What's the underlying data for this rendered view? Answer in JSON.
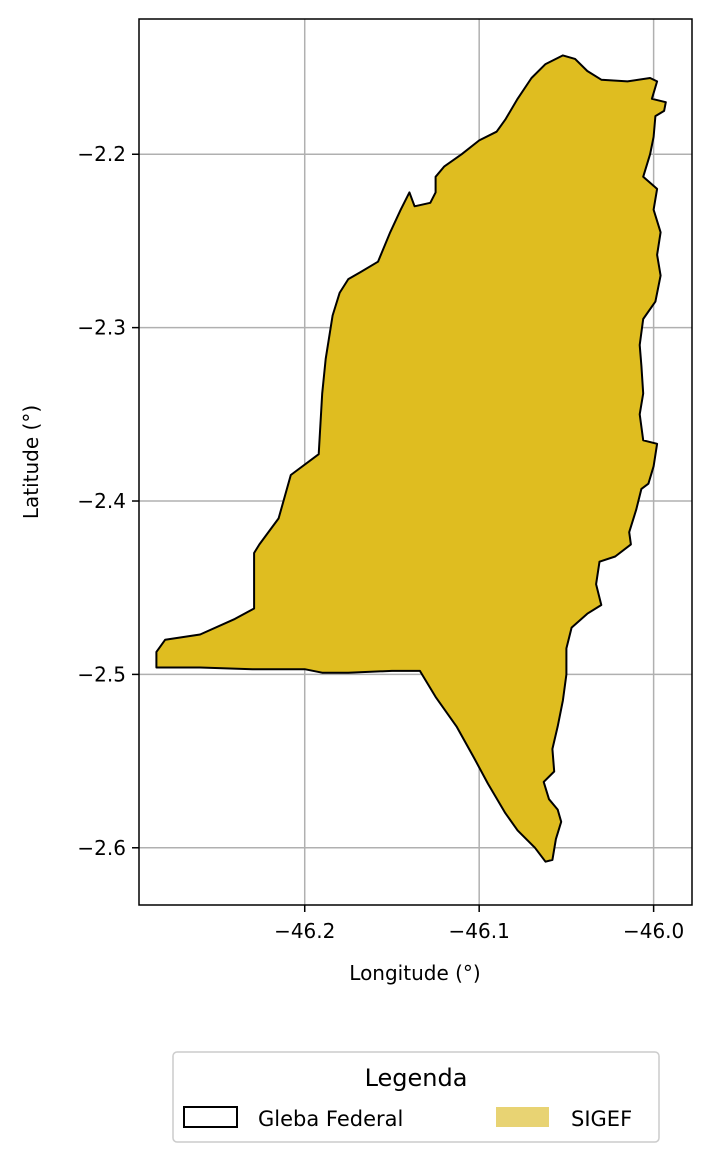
{
  "chart_data": {
    "type": "map",
    "xlabel": "Longitude (°)",
    "ylabel": "Latitude (°)",
    "xlim": [
      -46.295,
      -45.978
    ],
    "ylim": [
      -2.633,
      -2.122
    ],
    "x_ticks": [
      {
        "value": -46.2,
        "label": "−46.2"
      },
      {
        "value": -46.1,
        "label": "−46.1"
      },
      {
        "value": -46.0,
        "label": "−46.0"
      }
    ],
    "y_ticks": [
      {
        "value": -2.2,
        "label": "−2.2"
      },
      {
        "value": -2.3,
        "label": "−2.3"
      },
      {
        "value": -2.4,
        "label": "−2.4"
      },
      {
        "value": -2.5,
        "label": "−2.5"
      },
      {
        "value": -2.6,
        "label": "−2.6"
      }
    ],
    "grid": true,
    "legend": {
      "title": "Legenda",
      "placement": "bottom-center",
      "entries": [
        {
          "name": "Gleba Federal",
          "style": "outline",
          "edge_color": "#000000"
        },
        {
          "name": "SIGEF",
          "style": "fill",
          "fill_color": "#e8d373"
        }
      ]
    },
    "layers": [
      {
        "name": "SIGEF",
        "fill_color": "#dfbd20",
        "edge_color": "#000000",
        "polygon": [
          [
            -46.052,
            -2.143
          ],
          [
            -46.045,
            -2.145
          ],
          [
            -46.038,
            -2.152
          ],
          [
            -46.03,
            -2.157
          ],
          [
            -46.015,
            -2.158
          ],
          [
            -46.002,
            -2.156
          ],
          [
            -45.998,
            -2.158
          ],
          [
            -46.001,
            -2.168
          ],
          [
            -45.993,
            -2.17
          ],
          [
            -45.994,
            -2.175
          ],
          [
            -45.999,
            -2.178
          ],
          [
            -46.0,
            -2.19
          ],
          [
            -46.002,
            -2.2
          ],
          [
            -46.006,
            -2.213
          ],
          [
            -45.998,
            -2.22
          ],
          [
            -46.0,
            -2.232
          ],
          [
            -45.996,
            -2.245
          ],
          [
            -45.998,
            -2.258
          ],
          [
            -45.996,
            -2.27
          ],
          [
            -45.999,
            -2.285
          ],
          [
            -46.006,
            -2.295
          ],
          [
            -46.008,
            -2.31
          ],
          [
            -46.007,
            -2.322
          ],
          [
            -46.006,
            -2.338
          ],
          [
            -46.008,
            -2.35
          ],
          [
            -46.006,
            -2.365
          ],
          [
            -45.998,
            -2.367
          ],
          [
            -46.0,
            -2.38
          ],
          [
            -46.003,
            -2.39
          ],
          [
            -46.007,
            -2.393
          ],
          [
            -46.01,
            -2.405
          ],
          [
            -46.014,
            -2.418
          ],
          [
            -46.013,
            -2.425
          ],
          [
            -46.022,
            -2.432
          ],
          [
            -46.031,
            -2.435
          ],
          [
            -46.033,
            -2.448
          ],
          [
            -46.03,
            -2.46
          ],
          [
            -46.038,
            -2.465
          ],
          [
            -46.047,
            -2.473
          ],
          [
            -46.05,
            -2.485
          ],
          [
            -46.05,
            -2.5
          ],
          [
            -46.052,
            -2.515
          ],
          [
            -46.055,
            -2.53
          ],
          [
            -46.058,
            -2.543
          ],
          [
            -46.057,
            -2.556
          ],
          [
            -46.063,
            -2.562
          ],
          [
            -46.06,
            -2.572
          ],
          [
            -46.055,
            -2.578
          ],
          [
            -46.053,
            -2.585
          ],
          [
            -46.056,
            -2.595
          ],
          [
            -46.058,
            -2.607
          ],
          [
            -46.062,
            -2.608
          ],
          [
            -46.068,
            -2.6
          ],
          [
            -46.078,
            -2.59
          ],
          [
            -46.085,
            -2.58
          ],
          [
            -46.095,
            -2.563
          ],
          [
            -46.103,
            -2.548
          ],
          [
            -46.113,
            -2.53
          ],
          [
            -46.125,
            -2.513
          ],
          [
            -46.134,
            -2.498
          ],
          [
            -46.15,
            -2.498
          ],
          [
            -46.175,
            -2.499
          ],
          [
            -46.19,
            -2.499
          ],
          [
            -46.2,
            -2.497
          ],
          [
            -46.23,
            -2.497
          ],
          [
            -46.26,
            -2.496
          ],
          [
            -46.285,
            -2.496
          ],
          [
            -46.285,
            -2.487
          ],
          [
            -46.28,
            -2.48
          ],
          [
            -46.26,
            -2.477
          ],
          [
            -46.24,
            -2.468
          ],
          [
            -46.229,
            -2.462
          ],
          [
            -46.229,
            -2.445
          ],
          [
            -46.229,
            -2.43
          ],
          [
            -46.226,
            -2.425
          ],
          [
            -46.215,
            -2.41
          ],
          [
            -46.208,
            -2.385
          ],
          [
            -46.192,
            -2.373
          ],
          [
            -46.19,
            -2.338
          ],
          [
            -46.188,
            -2.318
          ],
          [
            -46.184,
            -2.293
          ],
          [
            -46.18,
            -2.28
          ],
          [
            -46.175,
            -2.272
          ],
          [
            -46.168,
            -2.268
          ],
          [
            -46.158,
            -2.262
          ],
          [
            -46.151,
            -2.245
          ],
          [
            -46.145,
            -2.232
          ],
          [
            -46.14,
            -2.222
          ],
          [
            -46.137,
            -2.23
          ],
          [
            -46.128,
            -2.228
          ],
          [
            -46.125,
            -2.222
          ],
          [
            -46.125,
            -2.213
          ],
          [
            -46.12,
            -2.207
          ],
          [
            -46.11,
            -2.2
          ],
          [
            -46.1,
            -2.192
          ],
          [
            -46.09,
            -2.187
          ],
          [
            -46.085,
            -2.18
          ],
          [
            -46.078,
            -2.168
          ],
          [
            -46.07,
            -2.156
          ],
          [
            -46.062,
            -2.148
          ]
        ]
      }
    ]
  }
}
